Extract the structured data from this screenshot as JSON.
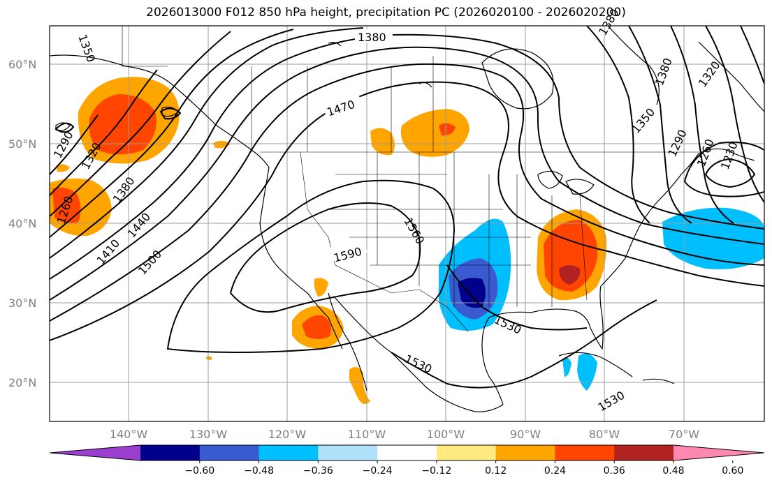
{
  "title": "2026013000 F012 850 hPa height, precipitation PC (2026020100 - 2026020200)",
  "latitude_labels": [
    "60°N",
    "50°N",
    "40°N",
    "30°N",
    "20°N"
  ],
  "longitude_labels": [
    "140°W",
    "130°W",
    "120°W",
    "110°W",
    "100°W",
    "90°W",
    "80°W",
    "70°W"
  ],
  "contour_labels": [
    "1380",
    "1350",
    "1470",
    "1290",
    "1320",
    "1260",
    "1380",
    "1440",
    "1410",
    "1500",
    "1560",
    "1590",
    "1530",
    "1530",
    "1530",
    "1380",
    "1350",
    "1290",
    "1260",
    "1320",
    "1380",
    "1230"
  ],
  "colorbar": {
    "ticks": [
      "−0.60",
      "−0.48",
      "−0.36",
      "−0.24",
      "−0.12",
      "0.12",
      "0.24",
      "0.36",
      "0.48",
      "0.60"
    ],
    "colors": [
      "#9a3fcf",
      "#00008b",
      "#3a5bd0",
      "#00bfff",
      "#b0e0fa",
      "#ffffff",
      "#ffea80",
      "#ffa500",
      "#ff4500",
      "#b22222",
      "#ff88b0"
    ]
  }
}
